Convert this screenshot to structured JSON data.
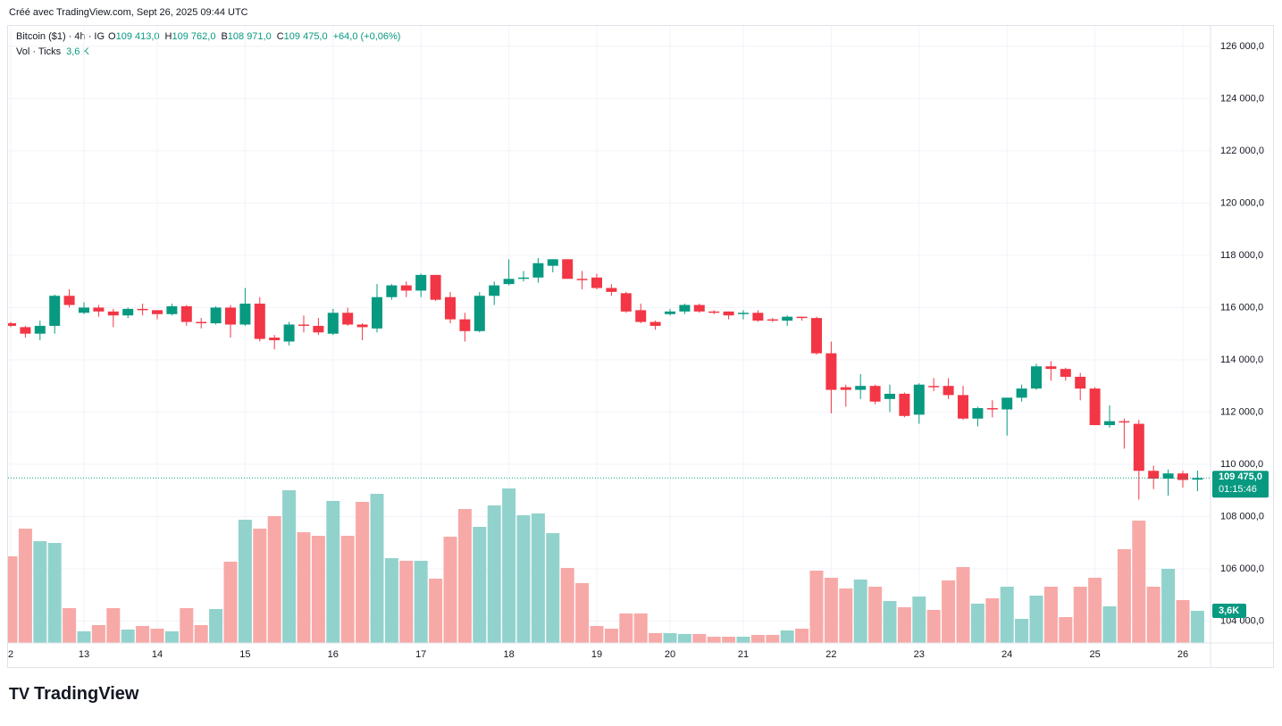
{
  "header": {
    "credit": "Créé avec TradingView.com, Sept 26, 2025 09:44 UTC"
  },
  "legend": {
    "symbol": "Bitcoin ($1) · 4h · IG",
    "o_key": "O",
    "o": "109 413,0",
    "h_key": "H",
    "h": "109 762,0",
    "b_key": "B",
    "b": "108 971,0",
    "c_key": "C",
    "c": "109 475,0",
    "change": "+64,0 (+0,06%)",
    "vol_title": "Vol · Ticks",
    "vol": "3,6 K"
  },
  "footer": {
    "brand": "TradingView"
  },
  "chart_data": {
    "type": "candlestick",
    "categories": [
      "2",
      null,
      null,
      null,
      null,
      "13",
      null,
      null,
      null,
      null,
      "14",
      null,
      null,
      null,
      null,
      null,
      "15",
      null,
      null,
      null,
      null,
      null,
      "16",
      null,
      null,
      null,
      null,
      null,
      "17",
      null,
      null,
      null,
      null,
      null,
      "18",
      null,
      null,
      null,
      null,
      null,
      "19",
      null,
      null,
      null,
      null,
      "20",
      null,
      null,
      null,
      null,
      "21",
      null,
      null,
      null,
      null,
      null,
      "22",
      null,
      null,
      null,
      null,
      null,
      "23",
      null,
      null,
      null,
      null,
      null,
      "24",
      null,
      null,
      null,
      null,
      null,
      "25",
      null,
      null,
      null,
      null,
      null,
      "26",
      null
    ],
    "open": [
      115400,
      115250,
      115000,
      115300,
      116450,
      115800,
      116000,
      115850,
      115700,
      115950,
      115900,
      115750,
      116050,
      115450,
      115400,
      116000,
      115350,
      116150,
      114850,
      114700,
      115350,
      115300,
      115000,
      115800,
      115350,
      115200,
      116400,
      116850,
      116650,
      117250,
      116400,
      115550,
      115100,
      116450,
      116900,
      117100,
      117150,
      117600,
      117850,
      117100,
      117150,
      116750,
      116550,
      115900,
      115450,
      115750,
      115850,
      116100,
      115850,
      115850,
      115750,
      115800,
      115550,
      115500,
      115650,
      115600,
      114250,
      112950,
      112850,
      113000,
      112500,
      112700,
      111900,
      113000,
      113000,
      112650,
      111750,
      112150,
      112100,
      112550,
      112900,
      113750,
      113650,
      113350,
      112900,
      111500,
      111650,
      111550,
      109750,
      109450,
      109650,
      109413
    ],
    "high": [
      115450,
      115300,
      115500,
      116500,
      116700,
      116200,
      116100,
      115950,
      116000,
      116150,
      115900,
      116150,
      116100,
      115600,
      116050,
      116100,
      116750,
      116400,
      114950,
      115450,
      115700,
      115600,
      115950,
      116000,
      115400,
      116900,
      116900,
      117000,
      117300,
      117250,
      116600,
      115800,
      116600,
      117000,
      117850,
      117400,
      117900,
      117850,
      117850,
      117400,
      117300,
      116900,
      116600,
      116150,
      115500,
      115950,
      116150,
      116150,
      115900,
      115850,
      115900,
      115900,
      115600,
      115700,
      115650,
      115650,
      114700,
      113050,
      113450,
      113050,
      113050,
      112750,
      113100,
      113300,
      113300,
      113000,
      112200,
      112450,
      112550,
      113050,
      113850,
      113950,
      113700,
      113500,
      112950,
      112250,
      111750,
      111700,
      109950,
      109800,
      109750,
      109762
    ],
    "low": [
      115250,
      114850,
      114750,
      115000,
      116000,
      115750,
      115650,
      115250,
      115600,
      115700,
      115550,
      115700,
      115300,
      115200,
      115350,
      114850,
      115300,
      114700,
      114400,
      114550,
      115050,
      114950,
      114950,
      115300,
      114750,
      115050,
      116300,
      116400,
      116400,
      116250,
      115400,
      114700,
      115050,
      116100,
      116850,
      117000,
      116950,
      117350,
      117100,
      116700,
      116700,
      116450,
      115800,
      115400,
      115150,
      115700,
      115750,
      115800,
      115750,
      115550,
      115550,
      115450,
      115450,
      115300,
      115500,
      114200,
      111950,
      112200,
      112500,
      112300,
      112000,
      111800,
      111550,
      112800,
      112500,
      111700,
      111450,
      111800,
      111100,
      112400,
      112850,
      113200,
      113200,
      112450,
      111500,
      111400,
      110600,
      108650,
      109050,
      108800,
      109100,
      108971
    ],
    "close": [
      115300,
      115000,
      115300,
      116450,
      116100,
      116000,
      115850,
      115700,
      115950,
      115900,
      115750,
      116050,
      115450,
      115400,
      116000,
      115350,
      116150,
      114800,
      114750,
      115350,
      115300,
      115050,
      115800,
      115350,
      115250,
      116400,
      116850,
      116650,
      117250,
      116300,
      115550,
      115100,
      116450,
      116850,
      117100,
      117150,
      117700,
      117850,
      117100,
      117050,
      116750,
      116600,
      115850,
      115450,
      115300,
      115850,
      116100,
      115850,
      115800,
      115700,
      115800,
      115500,
      115500,
      115650,
      115600,
      114250,
      112850,
      112850,
      113000,
      112400,
      112700,
      111850,
      113050,
      112950,
      112650,
      111750,
      112150,
      112100,
      112550,
      112900,
      113750,
      113650,
      113350,
      112900,
      111500,
      111650,
      111600,
      109750,
      109450,
      109650,
      109400,
      109475
    ],
    "volume": [
      9.7,
      12.8,
      11.4,
      11.2,
      3.9,
      1.3,
      2.0,
      3.9,
      1.5,
      1.9,
      1.6,
      1.3,
      3.9,
      2.0,
      3.8,
      9.1,
      13.8,
      12.8,
      14.2,
      17.1,
      12.4,
      12.0,
      15.9,
      12.0,
      15.8,
      16.7,
      9.5,
      9.2,
      9.2,
      7.2,
      11.9,
      15.0,
      13.0,
      15.4,
      17.3,
      14.3,
      14.5,
      12.3,
      8.4,
      6.7,
      1.9,
      1.6,
      3.3,
      3.3,
      1.1,
      1.1,
      1.0,
      1.0,
      0.7,
      0.7,
      0.7,
      0.9,
      0.9,
      1.4,
      1.6,
      8.1,
      7.3,
      6.1,
      7.1,
      6.3,
      4.7,
      4.0,
      5.2,
      3.7,
      7.0,
      8.5,
      4.4,
      5.0,
      6.3,
      2.7,
      5.3,
      6.3,
      2.9,
      6.3,
      7.3,
      4.1,
      10.5,
      13.7,
      6.3,
      8.3,
      4.8,
      3.6
    ],
    "ylim": [
      103160,
      126750
    ],
    "yticks": [
      {
        "value": 104000,
        "label": "104 000,0"
      },
      {
        "value": 106000,
        "label": "106 000,0"
      },
      {
        "value": 108000,
        "label": "108 000,0"
      },
      {
        "value": 110000,
        "label": "110 000,0"
      },
      {
        "value": 112000,
        "label": "112 000,0"
      },
      {
        "value": 114000,
        "label": "114 000,0"
      },
      {
        "value": 116000,
        "label": "116 000,0"
      },
      {
        "value": 118000,
        "label": "118 000,0"
      },
      {
        "value": 120000,
        "label": "120 000,0"
      },
      {
        "value": 122000,
        "label": "122 000,0"
      },
      {
        "value": 124000,
        "label": "124 000,0"
      },
      {
        "value": 126000,
        "label": "126 000,0"
      }
    ],
    "vol_ylim": [
      0,
      69
    ],
    "last_price": {
      "value": 109475,
      "label": "109 475,0"
    },
    "countdown": "01:15:46",
    "last_volume": {
      "value": 3.6,
      "label": "3,6K"
    },
    "up_color": "#089981",
    "down_color": "#f23645",
    "up_volume_color": "#92d2cc",
    "down_volume_color": "#f7a9a7",
    "grid": true
  }
}
